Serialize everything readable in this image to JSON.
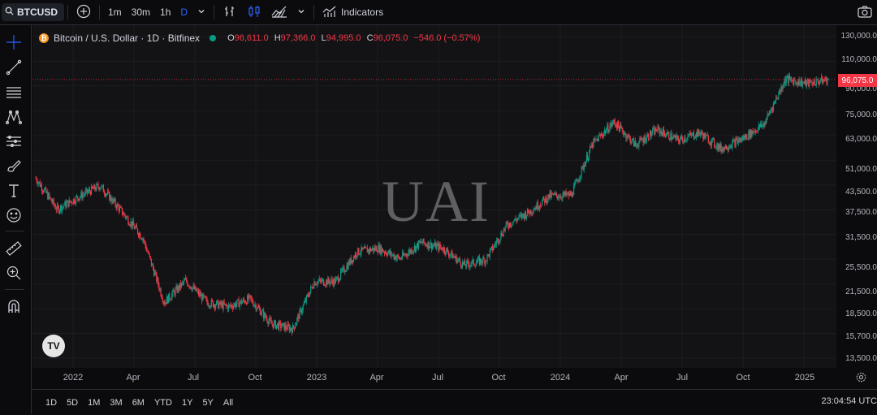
{
  "toolbar": {
    "symbol": "BTCUSD",
    "intervals": [
      "1m",
      "30m",
      "1h",
      "D"
    ],
    "active_interval": "D",
    "indicators_label": "Indicators"
  },
  "legend": {
    "title": "Bitcoin / U.S. Dollar · 1D · Bitfinex",
    "o_key": "O",
    "o_val": "96,611.0",
    "h_key": "H",
    "h_val": "97,366.0",
    "l_key": "L",
    "l_val": "94,995.0",
    "c_key": "C",
    "c_val": "96,075.0",
    "change": "−546.0 (−0.57%)"
  },
  "watermark": "UAI",
  "tv_logo": "TV",
  "current_price": "96,075.0",
  "price_axis": [
    "130,000.0",
    "110,000.0",
    "90,000.0",
    "75,000.0",
    "63,000.0",
    "51,000.0",
    "43,500.0",
    "37,500.0",
    "31,500.0",
    "25,500.0",
    "21,500.0",
    "18,500.0",
    "15,700.0",
    "13,500.0"
  ],
  "time_axis": [
    "2022",
    "Apr",
    "Jul",
    "Oct",
    "2023",
    "Apr",
    "Jul",
    "Oct",
    "2024",
    "Apr",
    "Jul",
    "Oct",
    "2025"
  ],
  "ranges": [
    "1D",
    "5D",
    "1M",
    "3M",
    "6M",
    "YTD",
    "1Y",
    "5Y",
    "All"
  ],
  "clock": "23:04:54 UTC",
  "colors": {
    "up": "#089981",
    "down": "#f23645",
    "accent": "#2962ff",
    "bg": "#131316"
  },
  "chart_data": {
    "type": "candlestick",
    "series_name": "BTCUSD",
    "price_scale": "log",
    "x": [
      "2021-12",
      "2022-01",
      "2022-02",
      "2022-03",
      "2022-04",
      "2022-05",
      "2022-06",
      "2022-07",
      "2022-08",
      "2022-09",
      "2022-10",
      "2022-11",
      "2022-12",
      "2023-01",
      "2023-02",
      "2023-03",
      "2023-04",
      "2023-05",
      "2023-06",
      "2023-07",
      "2023-08",
      "2023-09",
      "2023-10",
      "2023-11",
      "2023-12",
      "2024-01",
      "2024-02",
      "2024-03",
      "2024-04",
      "2024-05",
      "2024-06",
      "2024-07",
      "2024-08",
      "2024-09",
      "2024-10",
      "2024-11",
      "2024-12",
      "2025-01"
    ],
    "close": [
      48000,
      38500,
      42000,
      45500,
      38000,
      31500,
      20000,
      23300,
      20000,
      19400,
      20500,
      17200,
      16600,
      23100,
      23200,
      28500,
      29300,
      27200,
      30500,
      29300,
      26000,
      27000,
      34500,
      37700,
      42300,
      42600,
      61000,
      71300,
      60600,
      67500,
      62700,
      66000,
      59000,
      63300,
      70200,
      96400,
      93400,
      96075
    ],
    "ylim": [
      13500,
      130000
    ]
  }
}
